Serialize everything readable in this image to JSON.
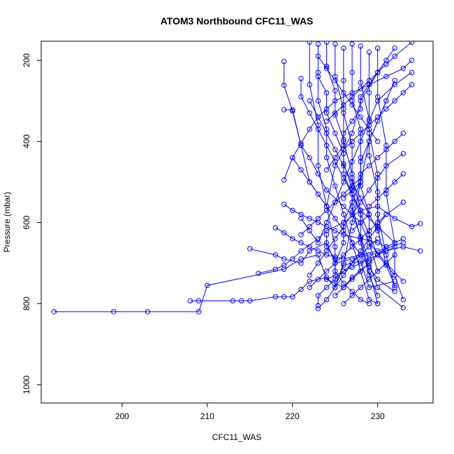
{
  "chart_data": {
    "type": "line",
    "title": "ATOM3 Northbound CFC11_WAS",
    "xlabel": "CFC11_WAS",
    "ylabel": "Pressure (mbar)",
    "xlim": [
      190.5,
      236.5
    ],
    "ylim": [
      1045,
      153
    ],
    "y_reversed": true,
    "grid": false,
    "legend": "none",
    "x_ticks": [
      200,
      210,
      220,
      230
    ],
    "y_ticks": [
      200,
      400,
      600,
      800,
      1000
    ],
    "series_color": "#0000ff",
    "marker": "open-circle",
    "series": [
      {
        "x": [
          192.0,
          199.0,
          203.0,
          209.0,
          210.0,
          219.0,
          221.0,
          223.0,
          224.0,
          226.0,
          227.0,
          229.0,
          230.0,
          233.0
        ],
        "y": [
          820,
          820,
          820,
          820,
          755,
          715,
          690,
          680,
          740,
          760,
          735,
          700,
          760,
          810
        ]
      },
      {
        "x": [
          208.0,
          209.0,
          213.0,
          214.0,
          215.0,
          218.0,
          219.0,
          220.0,
          221.0,
          222.0,
          224.0,
          225.0,
          226.0,
          228.0,
          229.0,
          232.0
        ],
        "y": [
          793,
          793,
          793,
          793,
          793,
          783,
          783,
          783,
          765,
          745,
          735,
          760,
          705,
          695,
          760,
          745
        ]
      },
      {
        "x": [
          215.0,
          218.0,
          219.0,
          221.0,
          222.0,
          224.0,
          225.0,
          227.0,
          229.0,
          231.0,
          233.0,
          235.0
        ],
        "y": [
          665,
          680,
          690,
          700,
          670,
          650,
          700,
          690,
          680,
          670,
          660,
          670
        ]
      },
      {
        "x": [
          216.0,
          218.0,
          219.0,
          220.0,
          221.0,
          223.0,
          224.0,
          226.0,
          228.0,
          230.0,
          232.0,
          234.0,
          235.0
        ],
        "y": [
          725,
          715,
          705,
          690,
          670,
          640,
          620,
          600,
          570,
          560,
          590,
          610,
          603
        ]
      },
      {
        "x": [
          218.0,
          219.0,
          220.0,
          221.0,
          222.0,
          223.0,
          224.0,
          225.0,
          226.0,
          228.0,
          230.0,
          233.0
        ],
        "y": [
          613,
          625,
          640,
          650,
          660,
          670,
          680,
          685,
          690,
          680,
          670,
          650
        ]
      },
      {
        "x": [
          219.0,
          219.0,
          220.0,
          221.0,
          222.0,
          224.0,
          225.0,
          227.0,
          228.0,
          230.0,
          232.0
        ],
        "y": [
          203,
          262,
          325,
          410,
          500,
          560,
          460,
          380,
          300,
          230,
          170
        ]
      },
      {
        "x": [
          219.0,
          220.0,
          221.0,
          222.0,
          223.0,
          224.0,
          226.0,
          228.0,
          229.0,
          231.0,
          233.0
        ],
        "y": [
          322,
          322,
          410,
          440,
          480,
          520,
          560,
          600,
          650,
          700,
          745
        ]
      },
      {
        "x": [
          219.0,
          220.0,
          221.0,
          222.0,
          223.0,
          224.0,
          225.0,
          227.0,
          229.0,
          231.0,
          233.0,
          234.0
        ],
        "y": [
          495,
          440,
          405,
          370,
          340,
          320,
          300,
          280,
          260,
          240,
          220,
          200
        ]
      },
      {
        "x": [
          219.0,
          220.0,
          221.0,
          222.0,
          223.0,
          224.0,
          225.0,
          226.0,
          228.0,
          230.0,
          231.0
        ],
        "y": [
          555,
          570,
          580,
          590,
          600,
          610,
          620,
          630,
          640,
          650,
          660
        ]
      },
      {
        "x": [
          220.0,
          221.0,
          222.0,
          223.0,
          224.0,
          225.0,
          226.0,
          227.0,
          228.0,
          229.0,
          230.0,
          232.0
        ],
        "y": [
          440,
          470,
          500,
          530,
          560,
          590,
          620,
          650,
          680,
          710,
          740,
          770
        ]
      },
      {
        "x": [
          221.0,
          221.0,
          222.0,
          223.0,
          224.0,
          225.0,
          226.0,
          227.0,
          228.0,
          230.0,
          232.0
        ],
        "y": [
          245,
          290,
          330,
          370,
          410,
          450,
          490,
          530,
          570,
          610,
          650
        ]
      },
      {
        "x": [
          221.0,
          222.0,
          223.0,
          224.0,
          225.0,
          226.0,
          227.0,
          228.0,
          229.0,
          230.0,
          232.0,
          234.0
        ],
        "y": [
          590,
          620,
          650,
          600,
          550,
          500,
          450,
          400,
          350,
          300,
          260,
          230
        ]
      },
      {
        "x": [
          222.0,
          222.0,
          223.0,
          223.0,
          224.0,
          225.0,
          225.0,
          226.0,
          227.0,
          228.0,
          229.0,
          231.0
        ],
        "y": [
          155,
          260,
          360,
          460,
          560,
          660,
          760,
          700,
          600,
          500,
          400,
          300
        ]
      },
      {
        "x": [
          222.0,
          223.0,
          224.0,
          225.0,
          226.0,
          227.0,
          228.0,
          229.0,
          230.0,
          231.0,
          233.0
        ],
        "y": [
          730,
          700,
          670,
          640,
          610,
          580,
          550,
          520,
          490,
          460,
          430
        ]
      },
      {
        "x": [
          223.0,
          223.0,
          223.0,
          224.0,
          224.0,
          225.0,
          226.0,
          227.0,
          228.0,
          229.0,
          230.0
        ],
        "y": [
          160,
          230,
          300,
          370,
          440,
          510,
          580,
          650,
          720,
          790,
          800
        ]
      },
      {
        "x": [
          223.0,
          224.0,
          225.0,
          226.0,
          227.0,
          228.0,
          229.0,
          230.0,
          231.0,
          233.0
        ],
        "y": [
          812,
          790,
          760,
          730,
          700,
          670,
          640,
          610,
          580,
          550
        ]
      },
      {
        "x": [
          223.0,
          224.0,
          224.0,
          225.0,
          226.0,
          226.0,
          227.0,
          228.0,
          229.0,
          230.0,
          232.0
        ],
        "y": [
          240,
          280,
          330,
          380,
          430,
          480,
          530,
          580,
          630,
          680,
          730
        ]
      },
      {
        "x": [
          224.0,
          224.0,
          225.0,
          225.0,
          226.0,
          226.0,
          227.0,
          227.0,
          228.0,
          229.0
        ],
        "y": [
          155,
          215,
          275,
          335,
          395,
          455,
          515,
          575,
          635,
          695
        ]
      },
      {
        "x": [
          224.0,
          225.0,
          226.0,
          227.0,
          228.0,
          229.0,
          230.0,
          231.0,
          232.0,
          234.0
        ],
        "y": [
          350,
          330,
          310,
          290,
          270,
          250,
          230,
          210,
          190,
          155
        ]
      },
      {
        "x": [
          224.0,
          225.0,
          226.0,
          226.0,
          227.0,
          228.0,
          228.0,
          229.0,
          230.0,
          231.0
        ],
        "y": [
          470,
          440,
          410,
          380,
          350,
          320,
          290,
          260,
          230,
          200
        ]
      },
      {
        "x": [
          225.0,
          225.0,
          226.0,
          226.0,
          227.0,
          227.0,
          228.0,
          229.0,
          230.0
        ],
        "y": [
          160,
          240,
          320,
          400,
          480,
          560,
          640,
          720,
          800
        ]
      },
      {
        "x": [
          225.0,
          226.0,
          226.0,
          227.0,
          228.0,
          228.0,
          229.0,
          230.0,
          231.0,
          232.0
        ],
        "y": [
          700,
          650,
          600,
          550,
          500,
          450,
          400,
          350,
          300,
          250
        ]
      },
      {
        "x": [
          226.0,
          226.0,
          226.0,
          227.0,
          227.0,
          228.0,
          228.0,
          229.0,
          230.0
        ],
        "y": [
          170,
          250,
          330,
          410,
          490,
          570,
          650,
          730,
          780
        ]
      },
      {
        "x": [
          226.0,
          227.0,
          228.0,
          228.0,
          229.0,
          230.0,
          231.0,
          232.0,
          233.0
        ],
        "y": [
          540,
          520,
          500,
          480,
          460,
          440,
          420,
          400,
          380
        ]
      },
      {
        "x": [
          227.0,
          227.0,
          227.0,
          228.0,
          228.0,
          228.0,
          229.0,
          229.0,
          230.0
        ],
        "y": [
          160,
          230,
          300,
          370,
          440,
          510,
          580,
          650,
          720
        ]
      },
      {
        "x": [
          227.0,
          228.0,
          229.0,
          229.0,
          230.0,
          231.0,
          232.0,
          233.0
        ],
        "y": [
          620,
          600,
          580,
          560,
          540,
          520,
          500,
          480
        ]
      },
      {
        "x": [
          228.0,
          228.0,
          229.0,
          229.0,
          230.0,
          230.0,
          231.0,
          232.0
        ],
        "y": [
          165,
          255,
          345,
          435,
          525,
          615,
          705,
          755
        ]
      },
      {
        "x": [
          229.0,
          229.0,
          229.0,
          230.0,
          230.0,
          231.0,
          232.0
        ],
        "y": [
          180,
          280,
          380,
          480,
          580,
          680,
          760
        ]
      },
      {
        "x": [
          230.0,
          230.0,
          231.0,
          231.0,
          232.0,
          232.0,
          233.0
        ],
        "y": [
          170,
          290,
          410,
          530,
          650,
          730,
          790
        ]
      },
      {
        "x": [
          222.0,
          223.0,
          224.0,
          225.0,
          226.0,
          227.0,
          228.0,
          229.0,
          230.0,
          231.0
        ],
        "y": [
          760,
          740,
          720,
          700,
          680,
          660,
          640,
          620,
          600,
          580
        ]
      },
      {
        "x": [
          223.0,
          223.0,
          224.0,
          225.0,
          226.0,
          227.0,
          228.0,
          229.0,
          230.0
        ],
        "y": [
          805,
          780,
          760,
          740,
          720,
          700,
          680,
          660,
          640
        ]
      },
      {
        "x": [
          224.0,
          225.0,
          226.0,
          227.0,
          228.0,
          229.0,
          230.0,
          231.0,
          232.0
        ],
        "y": [
          740,
          730,
          720,
          710,
          700,
          690,
          680,
          670,
          660
        ]
      },
      {
        "x": [
          225.0,
          226.0,
          227.0,
          228.0,
          229.0,
          230.0,
          231.0,
          233.0
        ],
        "y": [
          780,
          760,
          740,
          720,
          700,
          680,
          660,
          640
        ]
      },
      {
        "x": [
          226.0,
          227.0,
          228.0,
          229.0,
          230.0,
          231.0,
          232.0
        ],
        "y": [
          800,
          780,
          760,
          740,
          720,
          700,
          680
        ]
      },
      {
        "x": [
          221.0,
          222.0,
          223.0,
          224.0,
          225.0,
          226.0,
          227.0,
          228.0
        ],
        "y": [
          630,
          610,
          590,
          570,
          550,
          530,
          510,
          490
        ]
      },
      {
        "x": [
          222.0,
          223.0,
          224.0,
          225.0,
          226.0,
          227.0,
          228.0,
          229.0,
          230.0
        ],
        "y": [
          300,
          340,
          380,
          420,
          460,
          500,
          540,
          580,
          620
        ]
      },
      {
        "x": [
          223.0,
          224.0,
          225.0,
          226.0,
          227.0,
          228.0,
          229.0,
          230.0
        ],
        "y": [
          190,
          220,
          250,
          280,
          310,
          340,
          370,
          400
        ]
      },
      {
        "x": [
          226.0,
          227.0,
          228.0,
          229.0,
          230.0,
          231.0,
          232.0,
          233.0,
          234.0
        ],
        "y": [
          420,
          400,
          380,
          360,
          340,
          320,
          300,
          280,
          260
        ]
      },
      {
        "x": [
          224.0,
          224.0,
          225.0,
          225.0,
          226.0,
          227.0,
          228.0,
          229.0
        ],
        "y": [
          630,
          660,
          690,
          720,
          750,
          770,
          790,
          800
        ]
      }
    ]
  }
}
